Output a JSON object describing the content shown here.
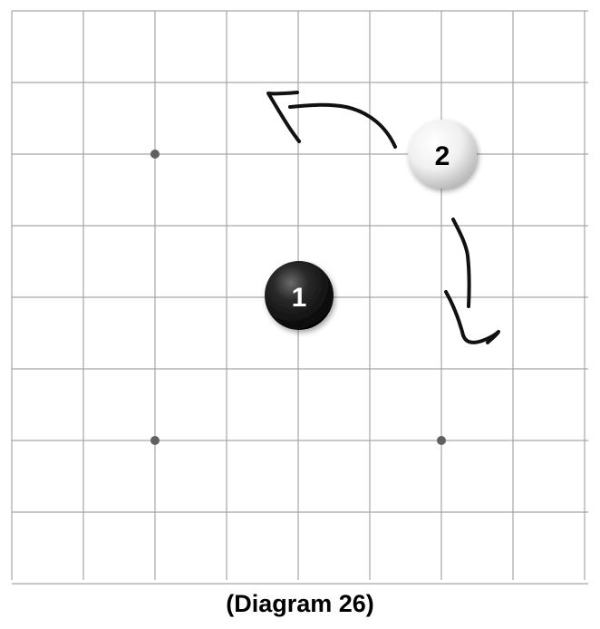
{
  "diagram": {
    "caption": "(Diagram 26)",
    "board": {
      "columns": 9,
      "rows": 9,
      "grid_color": "#a6a6a6",
      "star_point_color": "#606060",
      "star_points": [
        {
          "col": 2,
          "row": 2
        },
        {
          "col": 2,
          "row": 6
        },
        {
          "col": 6,
          "row": 6
        }
      ]
    },
    "stones": [
      {
        "label": "1",
        "color": "black",
        "col": 4,
        "row": 4
      },
      {
        "label": "2",
        "color": "white",
        "col": 6,
        "row": 2
      }
    ],
    "arrows": [
      {
        "name": "arrow-up-left",
        "icon": "hand-drawn-arrow-icon"
      },
      {
        "name": "arrow-down",
        "icon": "hand-drawn-arrow-icon"
      }
    ]
  }
}
